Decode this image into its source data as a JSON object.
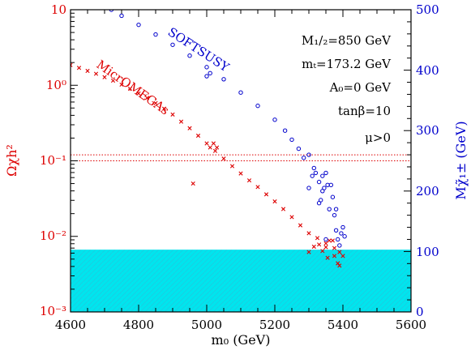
{
  "chart_data": {
    "type": "scatter",
    "x_axis": {
      "label": "m₀ (GeV)",
      "range": [
        4600,
        5600
      ],
      "ticks": [
        "4600",
        "4800",
        "5000",
        "5200",
        "5400",
        "5600"
      ]
    },
    "y_axis_left": {
      "label": "Ωχh²",
      "scale": "log",
      "range": [
        0.001,
        10
      ],
      "ticks": [
        "10",
        "10⁰",
        "10⁻¹",
        "10⁻²",
        "10⁻³"
      ],
      "color": "#dd0000"
    },
    "y_axis_right": {
      "label": "Mχ̃₁± (GeV)",
      "range": [
        0,
        500
      ],
      "ticks": [
        "0",
        "100",
        "200",
        "300",
        "400",
        "500"
      ],
      "color": "#0000cc"
    },
    "parameters": [
      "M₁/₂=850 GeV",
      "mₜ=173.2 GeV",
      "A₀=0 GeV",
      "tanβ=10",
      "μ>0"
    ],
    "series": [
      {
        "name": "MicrOMEGAs",
        "axis": "left",
        "marker": "x",
        "color": "#dd0000",
        "points": [
          [
            4600,
            1.85
          ],
          [
            4625,
            1.7
          ],
          [
            4650,
            1.55
          ],
          [
            4675,
            1.42
          ],
          [
            4700,
            1.28
          ],
          [
            4725,
            1.15
          ],
          [
            4750,
            1.02
          ],
          [
            4775,
            0.9
          ],
          [
            4800,
            0.78
          ],
          [
            4825,
            0.68
          ],
          [
            4850,
            0.58
          ],
          [
            4875,
            0.49
          ],
          [
            4900,
            0.41
          ],
          [
            4925,
            0.33
          ],
          [
            4950,
            0.27
          ],
          [
            4975,
            0.215
          ],
          [
            5000,
            0.17
          ],
          [
            5025,
            0.135
          ],
          [
            5050,
            0.107
          ],
          [
            5075,
            0.085
          ],
          [
            5100,
            0.068
          ],
          [
            5125,
            0.055
          ],
          [
            5150,
            0.045
          ],
          [
            5175,
            0.036
          ],
          [
            5200,
            0.029
          ],
          [
            5225,
            0.023
          ],
          [
            5250,
            0.018
          ],
          [
            5275,
            0.014
          ],
          [
            5300,
            0.011
          ],
          [
            5325,
            0.0095
          ],
          [
            5350,
            0.0081
          ],
          [
            5375,
            0.007
          ],
          [
            5390,
            0.0062
          ],
          [
            5010,
            0.15
          ],
          [
            5020,
            0.17
          ],
          [
            5030,
            0.15
          ],
          [
            5300,
            0.0062
          ],
          [
            5315,
            0.0073
          ],
          [
            5330,
            0.0078
          ],
          [
            5340,
            0.0064
          ],
          [
            5350,
            0.0072
          ],
          [
            5355,
            0.0052
          ],
          [
            5360,
            0.0088
          ],
          [
            5370,
            0.0088
          ],
          [
            5375,
            0.0055
          ],
          [
            5385,
            0.0044
          ],
          [
            5390,
            0.0041
          ],
          [
            5400,
            0.0055
          ],
          [
            4960,
            0.05
          ]
        ]
      },
      {
        "name": "SOFTSUSY",
        "axis": "right",
        "marker": "circle",
        "color": "#0000cc",
        "points": [
          [
            4720,
            500
          ],
          [
            4750,
            490
          ],
          [
            4800,
            475
          ],
          [
            4850,
            459
          ],
          [
            4900,
            442
          ],
          [
            4950,
            424
          ],
          [
            5000,
            405
          ],
          [
            5050,
            385
          ],
          [
            5100,
            363
          ],
          [
            5150,
            341
          ],
          [
            5200,
            318
          ],
          [
            5230,
            300
          ],
          [
            5250,
            285
          ],
          [
            5270,
            270
          ],
          [
            5285,
            255
          ],
          [
            5000,
            390
          ],
          [
            5010,
            395
          ],
          [
            5300,
            260
          ],
          [
            5310,
            225
          ],
          [
            5315,
            238
          ],
          [
            5320,
            230
          ],
          [
            5330,
            215
          ],
          [
            5335,
            185
          ],
          [
            5340,
            200
          ],
          [
            5345,
            205
          ],
          [
            5350,
            230
          ],
          [
            5355,
            210
          ],
          [
            5360,
            170
          ],
          [
            5365,
            210
          ],
          [
            5370,
            190
          ],
          [
            5375,
            160
          ],
          [
            5380,
            170
          ],
          [
            5385,
            120
          ],
          [
            5390,
            110
          ],
          [
            5395,
            130
          ],
          [
            5400,
            140
          ],
          [
            5405,
            125
          ],
          [
            5340,
            225
          ],
          [
            5330,
            180
          ],
          [
            5300,
            205
          ],
          [
            5350,
            120
          ],
          [
            5380,
            135
          ]
        ]
      }
    ],
    "reference_lines": [
      {
        "axis": "left",
        "value": 0.1,
        "style": "dotted",
        "color": "#dd0000"
      },
      {
        "axis": "left",
        "value": 0.12,
        "style": "dotted",
        "color": "#dd0000"
      }
    ],
    "excluded_band": {
      "axis": "right",
      "from": 0,
      "to": 103,
      "color": "#00e5ee"
    }
  }
}
